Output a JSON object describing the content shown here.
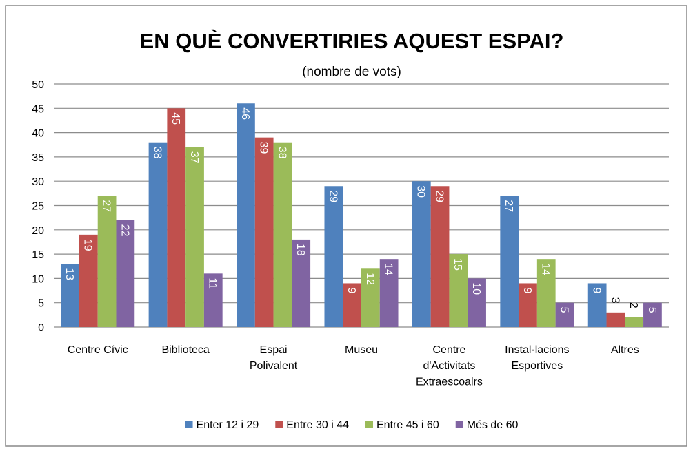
{
  "chart_data": {
    "type": "bar",
    "title": "EN QUÈ CONVERTIRIES AQUEST ESPAI?",
    "subtitle": "(nombre de vots)",
    "categories": [
      "Centre Cívic",
      "Biblioteca",
      "Espai\nPolivalent",
      "Museu",
      "Centre\nd'Activitats\nExtraescoalrs",
      "Instal·lacions\nEsportives",
      "Altres"
    ],
    "series": [
      {
        "name": "Enter 12 i 29",
        "color": "#4f81bd",
        "values": [
          13,
          38,
          46,
          29,
          30,
          27,
          9
        ]
      },
      {
        "name": "Entre 30 i 44",
        "color": "#c0504d",
        "values": [
          19,
          45,
          39,
          9,
          29,
          9,
          3
        ]
      },
      {
        "name": "Entre 45 i 60",
        "color": "#9bbb59",
        "values": [
          27,
          37,
          38,
          12,
          15,
          14,
          2
        ]
      },
      {
        "name": "Més de 60",
        "color": "#8064a2",
        "values": [
          22,
          11,
          18,
          14,
          10,
          5,
          5
        ]
      }
    ],
    "ylim": [
      0,
      50
    ],
    "yticks": [
      0,
      5,
      10,
      15,
      20,
      25,
      30,
      35,
      40,
      45,
      50
    ],
    "grid": true,
    "legend": "bottom"
  }
}
